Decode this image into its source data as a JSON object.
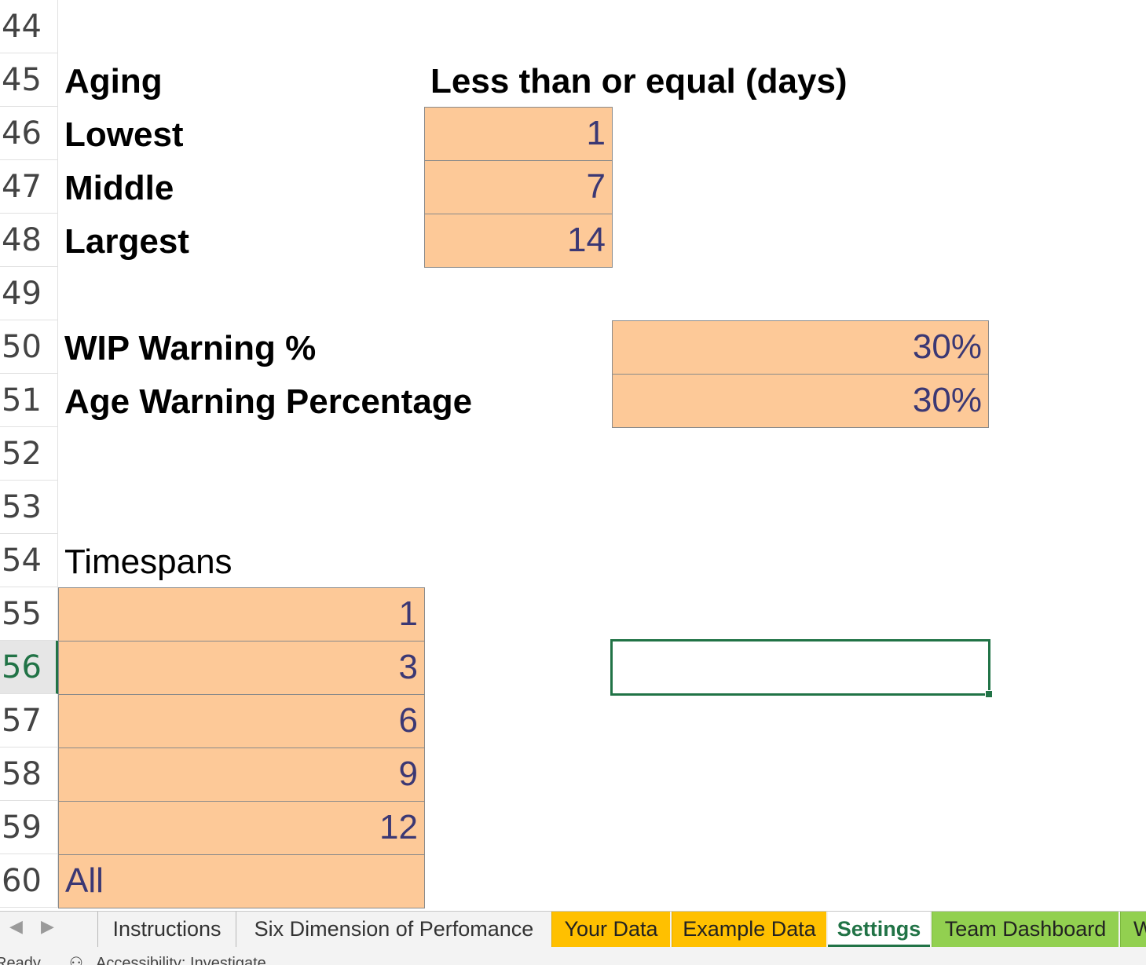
{
  "rows": [
    "44",
    "45",
    "46",
    "47",
    "48",
    "49",
    "50",
    "51",
    "52",
    "53",
    "54",
    "55",
    "56",
    "57",
    "58",
    "59",
    "60"
  ],
  "aging": {
    "title": "Aging",
    "column_header": "Less than or equal (days)",
    "lowest_label": "Lowest",
    "lowest_value": "1",
    "middle_label": "Middle",
    "middle_value": "7",
    "largest_label": "Largest",
    "largest_value": "14"
  },
  "warnings": {
    "wip_label": "WIP Warning %",
    "wip_value": "30%",
    "age_label": "Age Warning Percentage",
    "age_value": "30%"
  },
  "timespans": {
    "title": "Timespans",
    "values": [
      "1",
      "3",
      "6",
      "9",
      "12",
      "All"
    ]
  },
  "sheet_tabs": {
    "instructions": "Instructions",
    "six_dimension": "Six Dimension of Perfomance",
    "your_data": "Your Data",
    "example_data": "Example Data",
    "settings": "Settings",
    "team_dashboard": "Team Dashboard",
    "next_partial": "W"
  },
  "status_bar": {
    "ready": "Ready",
    "accessibility": "Accessibility: Investigate"
  },
  "icons": {
    "prev": "chevron-left-icon",
    "next": "chevron-right-icon",
    "accessibility": "accessibility-icon"
  },
  "colors": {
    "input_fill": "#fdc998",
    "selection": "#217346",
    "tab_yellow": "#ffc000",
    "tab_green": "#92d050"
  }
}
